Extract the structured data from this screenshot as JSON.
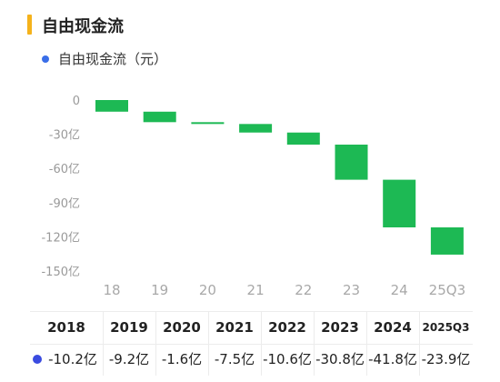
{
  "title": "自由现金流",
  "legend": {
    "label": "自由现金流（元）",
    "color": "#3a6ee8"
  },
  "chart_data": {
    "type": "bar",
    "subtype": "waterfall",
    "categories": [
      "18",
      "19",
      "20",
      "21",
      "22",
      "23",
      "24",
      "25Q3"
    ],
    "deltas": [
      -10.2,
      -9.2,
      -1.6,
      -7.5,
      -10.6,
      -30.8,
      -41.8,
      -23.9
    ],
    "y_ticks": [
      "0",
      "-30亿",
      "-60亿",
      "-90亿",
      "-120亿",
      "-150亿"
    ],
    "y_tick_values": [
      0,
      -30,
      -60,
      -90,
      -120,
      -150
    ],
    "ylim": [
      -150,
      0
    ],
    "grid": false,
    "bar_color": "#1db954"
  },
  "table": {
    "headers": [
      "2018",
      "2019",
      "2020",
      "2021",
      "2022",
      "2023",
      "2024",
      "2025Q3"
    ],
    "values": [
      "-10.2亿",
      "-9.2亿",
      "-1.6亿",
      "-7.5亿",
      "-10.6亿",
      "-30.8亿",
      "-41.8亿",
      "-23.9亿"
    ]
  }
}
